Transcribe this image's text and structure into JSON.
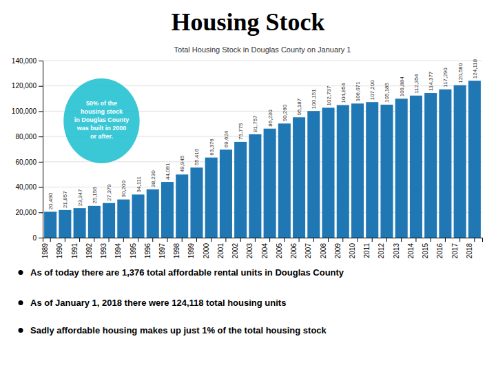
{
  "chart_data": {
    "type": "bar",
    "title": "Housing Stock",
    "subtitle": "Total Housing Stock in Douglas County on January 1",
    "categories": [
      "1989",
      "1990",
      "1991",
      "1992",
      "1993",
      "1994",
      "1995",
      "1996",
      "1997",
      "1998",
      "1999",
      "2000",
      "2001",
      "2002",
      "2003",
      "2004",
      "2005",
      "2006",
      "2007",
      "2008",
      "2009",
      "2010",
      "2011",
      "2012",
      "2013",
      "2014",
      "2015",
      "2016",
      "2017",
      "2018"
    ],
    "values": [
      20490,
      21857,
      23347,
      25156,
      27379,
      30200,
      34111,
      38230,
      44091,
      49945,
      55416,
      63376,
      69624,
      75775,
      81757,
      86230,
      90260,
      95187,
      100151,
      102737,
      104854,
      106071,
      107200,
      105185,
      109884,
      112354,
      114377,
      117290,
      120580,
      124118
    ],
    "data_labels": true,
    "value_labels": [
      "20,490",
      "21,857",
      "23,347",
      "25,156",
      "27,379",
      "30,200",
      "34,111",
      "38,230",
      "44,091",
      "49,945",
      "55,416",
      "63,376",
      "69,624",
      "75,775",
      "81,757",
      "86,230",
      "90,260",
      "95,187",
      "100,151",
      "102,737",
      "104,854",
      "106,071",
      "107,200",
      "105,185",
      "109,884",
      "112,354",
      "114,377",
      "117,290",
      "120,580",
      "124,118"
    ],
    "ylim": [
      0,
      140000
    ],
    "yticks": [
      0,
      {
        "value": 20000,
        "label": "20,000"
      },
      {
        "value": 40000,
        "label": "40,000"
      },
      {
        "value": 60000,
        "label": "60,000"
      },
      {
        "value": 80000,
        "label": "80,000"
      },
      {
        "value": 100000,
        "label": "100,000"
      },
      {
        "value": 120000,
        "label": "120,000"
      },
      {
        "value": 140000,
        "label": "140,000"
      }
    ],
    "grid": true,
    "annotations": [
      "50% of the\nhousing stock\nin Douglas County\nwas built in 2000\nor after.",
      "As of today there are 1,376 total affordable rental units in Douglas County",
      "As of January 1, 2018 there were 124,118 total housing units",
      "Sadly affordable housing makes up just 1% of the total housing stock"
    ]
  }
}
